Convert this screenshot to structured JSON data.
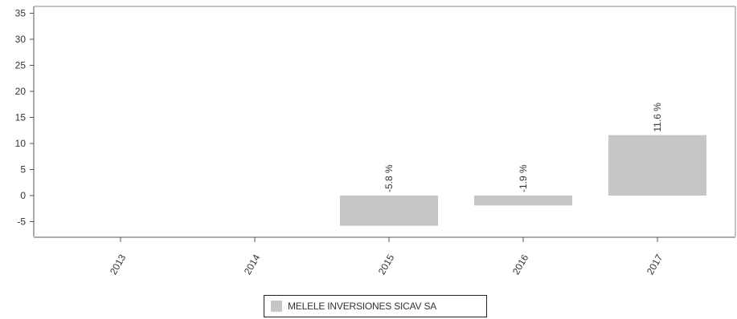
{
  "chart_data": {
    "type": "bar",
    "categories": [
      "2013",
      "2014",
      "2015",
      "2016",
      "2017"
    ],
    "series": [
      {
        "name": "MELELE INVERSIONES SICAV SA",
        "values": [
          null,
          null,
          -5.8,
          -1.9,
          11.6
        ],
        "labels": [
          "",
          "",
          "-5.8 %",
          "-1.9 %",
          "11.6 %"
        ]
      }
    ],
    "title": "",
    "xlabel": "",
    "ylabel": "",
    "ylim": [
      -8,
      36
    ],
    "yticks": [
      -5,
      0,
      5,
      10,
      15,
      20,
      25,
      30,
      35
    ],
    "grid": false,
    "legend": "bottom-center",
    "colors": {
      "bar": "#c6c6c6",
      "axis": "#555555",
      "frame": "#888888"
    }
  }
}
